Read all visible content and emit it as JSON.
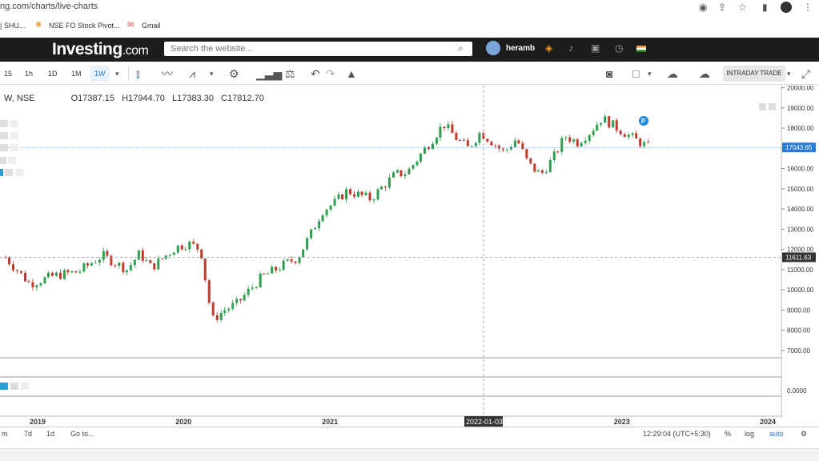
{
  "browser": {
    "url": "ng.com/charts/live-charts",
    "bookmarks": [
      {
        "label": "| SHU..."
      },
      {
        "label": "NSE FO Stock Pivot..."
      },
      {
        "label": "Gmail"
      }
    ]
  },
  "site": {
    "logo_main": "Investing",
    "logo_domain": ".com",
    "search_placeholder": "Search the website...",
    "username": "heramb"
  },
  "toolbar": {
    "intervals": [
      "15",
      "1h",
      "1D",
      "1M",
      "1W"
    ],
    "selected_interval": "1W",
    "intraday_label": "INTRADAY TRADE"
  },
  "legend": {
    "symbol": "W, NSE",
    "open": "O17387.15",
    "high": "H17944.70",
    "low": "L17383.30",
    "close": "C17812.70"
  },
  "chart_data": {
    "type": "candlestick",
    "y_ticks": [
      "20000.00",
      "19000.00",
      "18000.00",
      "17000.00",
      "16000.00",
      "15000.00",
      "14000.00",
      "13000.00",
      "12000.00",
      "11000.00",
      "10000.00",
      "9000.00",
      "8000.00",
      "7000.00"
    ],
    "ylim": [
      6800,
      20100
    ],
    "x_ticks": [
      "2019",
      "2020",
      "2021",
      "2022-01-03",
      "2023",
      "2024"
    ],
    "crosshair_x_label": "2022-01-03",
    "last_price_label": "17043.65",
    "crosshair_price_label": "11611.63",
    "indicator_tick": "0.0000",
    "color_up": "#2e9e4f",
    "color_down": "#c0392b",
    "series_points": [
      [
        "2018-10",
        11600
      ],
      [
        "2018-12",
        10300
      ],
      [
        "2019-02",
        10700
      ],
      [
        "2019-04",
        10900
      ],
      [
        "2019-06",
        11700
      ],
      [
        "2019-08",
        11000
      ],
      [
        "2019-09",
        11800
      ],
      [
        "2019-10",
        11100
      ],
      [
        "2019-12",
        12100
      ],
      [
        "2020-01",
        12300
      ],
      [
        "2020-02",
        12000
      ],
      [
        "2020-03",
        8500
      ],
      [
        "2020-04",
        9000
      ],
      [
        "2020-05",
        9300
      ],
      [
        "2020-07",
        10600
      ],
      [
        "2020-09",
        11300
      ],
      [
        "2020-10",
        11600
      ],
      [
        "2020-11",
        12700
      ],
      [
        "2020-12",
        13900
      ],
      [
        "2021-01",
        14300
      ],
      [
        "2021-02",
        14900
      ],
      [
        "2021-04",
        14500
      ],
      [
        "2021-06",
        15700
      ],
      [
        "2021-07",
        15800
      ],
      [
        "2021-08",
        16600
      ],
      [
        "2021-10",
        18200
      ],
      [
        "2021-11",
        17500
      ],
      [
        "2021-12",
        17000
      ],
      [
        "2022-01",
        17800
      ],
      [
        "2022-03",
        16800
      ],
      [
        "2022-04",
        17500
      ],
      [
        "2022-05",
        16200
      ],
      [
        "2022-06",
        15700
      ],
      [
        "2022-07",
        16500
      ],
      [
        "2022-08",
        17600
      ],
      [
        "2022-09",
        17300
      ],
      [
        "2022-10",
        17800
      ],
      [
        "2022-11",
        18500
      ],
      [
        "2022-12",
        18100
      ],
      [
        "2023-01",
        17700
      ],
      [
        "2023-03",
        17000
      ]
    ]
  },
  "status": {
    "time": "12:29:04 (UTC+5:30)",
    "percent": "%",
    "log": "log",
    "auto": "auto",
    "range_buttons": [
      "m",
      "7d",
      "1d",
      "Go to..."
    ]
  }
}
